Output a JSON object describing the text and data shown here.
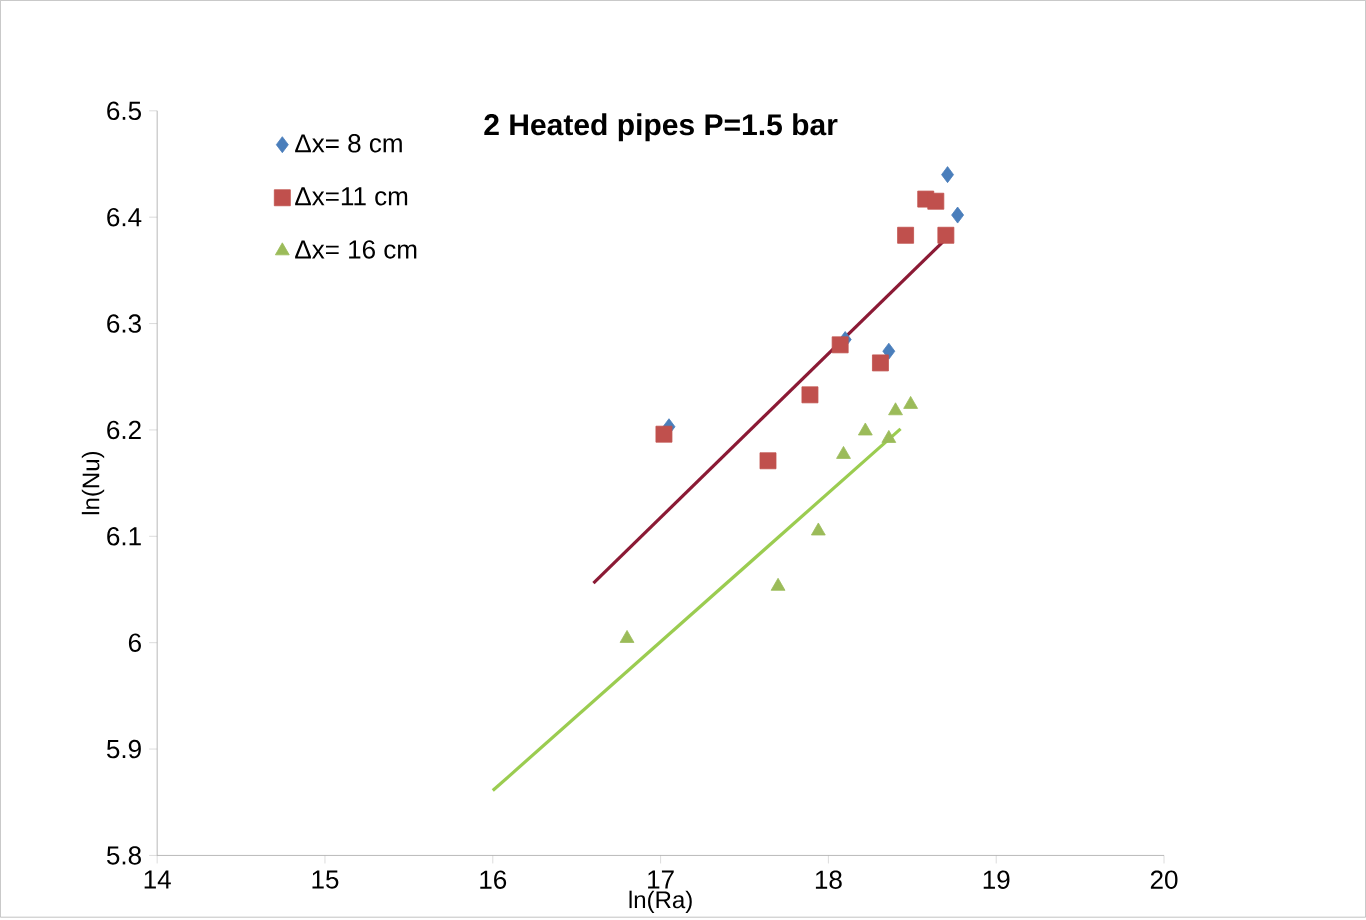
{
  "chart_data": {
    "type": "scatter",
    "title": "2 Heated pipes P=1.5 bar",
    "xlabel": "ln(Ra)",
    "ylabel": "ln(Nu)",
    "xlim": [
      14,
      20
    ],
    "xticks": [
      14,
      15,
      16,
      17,
      18,
      19,
      20
    ],
    "ylim": [
      5.8,
      6.5
    ],
    "yticks": [
      5.8,
      5.9,
      6,
      6.1,
      6.2,
      6.3,
      6.4,
      6.5
    ],
    "grid": false,
    "legend": "top left",
    "series": [
      {
        "name": "Δx= 8 cm",
        "color": "#4a7ebb",
        "marker": "diamond",
        "x": [
          17.05,
          18.1,
          18.36,
          18.71,
          18.77
        ],
        "values": [
          6.203,
          6.285,
          6.274,
          6.44,
          6.402
        ]
      },
      {
        "name": "Δx=11 cm",
        "color": "#c0504d",
        "marker": "square",
        "x": [
          17.02,
          17.64,
          17.89,
          18.07,
          18.31,
          18.46,
          18.58,
          18.64,
          18.7
        ],
        "values": [
          6.196,
          6.171,
          6.233,
          6.28,
          6.263,
          6.383,
          6.417,
          6.415,
          6.383
        ]
      },
      {
        "name": "Δx= 16 cm",
        "color": "#9bbb59",
        "marker": "triangle",
        "x": [
          16.8,
          17.7,
          17.94,
          18.09,
          18.22,
          18.36,
          18.4,
          18.49
        ],
        "values": [
          6.004,
          6.053,
          6.105,
          6.177,
          6.199,
          6.192,
          6.218,
          6.224
        ]
      },
      {
        "type": "line",
        "color": "#8b1a35",
        "marker": "none",
        "x": [
          16.6,
          18.69
        ],
        "values": [
          6.056,
          6.378
        ]
      },
      {
        "type": "line",
        "color": "#9bcc50",
        "marker": "none",
        "x": [
          16.0,
          18.43
        ],
        "values": [
          5.861,
          6.201
        ]
      }
    ]
  }
}
